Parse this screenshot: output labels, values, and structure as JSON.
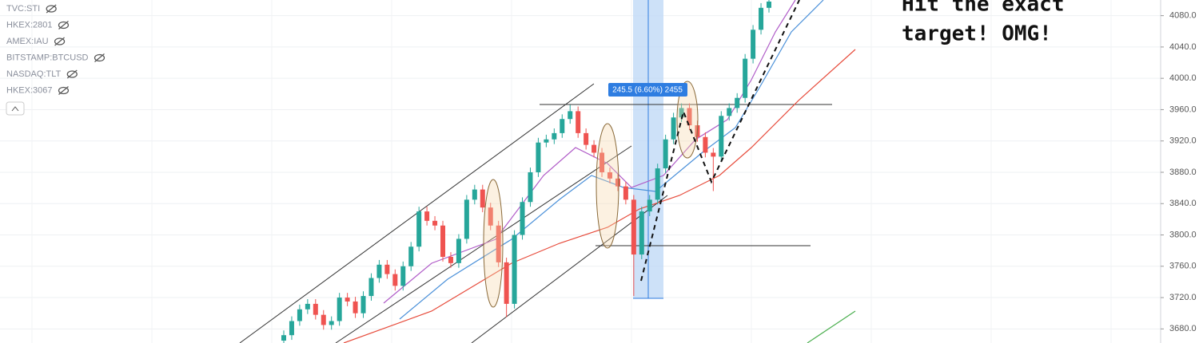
{
  "symbols": [
    "TVC:STI",
    "HKEX:2801",
    "AMEX:IAU",
    "BITSTAMP:BTCUSD",
    "NASDAQ:TLT",
    "HKEX:3067"
  ],
  "chart_data": {
    "type": "candlestick",
    "open": [
      3665,
      3672,
      3690,
      3705,
      3712,
      3698,
      3685,
      3690,
      3720,
      3715,
      3700,
      3722,
      3745,
      3762,
      3750,
      3735,
      3760,
      3785,
      3830,
      3818,
      3812,
      3772,
      3764,
      3795,
      3845,
      3858,
      3835,
      3812,
      3765,
      3712,
      3800,
      3842,
      3880,
      3918,
      3922,
      3930,
      3948,
      3958,
      3930,
      3915,
      3905,
      3880,
      3872,
      3862,
      3845,
      3775,
      3830,
      3845,
      3885,
      3922,
      3950,
      3962,
      3940,
      3925,
      3905,
      3900,
      3952,
      3962,
      3975,
      4025,
      4062,
      4090
    ],
    "high": [
      3678,
      3696,
      3711,
      3718,
      3718,
      3704,
      3696,
      3726,
      3726,
      3721,
      3728,
      3751,
      3768,
      3768,
      3756,
      3766,
      3791,
      3836,
      3836,
      3824,
      3818,
      3778,
      3801,
      3851,
      3864,
      3864,
      3841,
      3818,
      3771,
      3806,
      3848,
      3886,
      3924,
      3928,
      3936,
      3954,
      3966,
      3964,
      3936,
      3921,
      3911,
      3886,
      3878,
      3868,
      3851,
      3836,
      3851,
      3891,
      3928,
      3956,
      3968,
      3968,
      3946,
      3931,
      3911,
      3958,
      3968,
      3981,
      4031,
      4068,
      4096,
      4104
    ],
    "low": [
      3659,
      3666,
      3684,
      3699,
      3692,
      3679,
      3679,
      3684,
      3709,
      3694,
      3694,
      3716,
      3739,
      3744,
      3729,
      3729,
      3754,
      3779,
      3812,
      3806,
      3766,
      3758,
      3758,
      3789,
      3839,
      3829,
      3806,
      3759,
      3695,
      3706,
      3794,
      3836,
      3874,
      3912,
      3916,
      3924,
      3942,
      3924,
      3909,
      3899,
      3874,
      3866,
      3856,
      3839,
      3722,
      3769,
      3824,
      3839,
      3879,
      3916,
      3944,
      3934,
      3919,
      3899,
      3856,
      3894,
      3946,
      3956,
      3969,
      4019,
      4056,
      4084
    ],
    "close": [
      3672,
      3690,
      3705,
      3712,
      3698,
      3685,
      3690,
      3720,
      3715,
      3700,
      3722,
      3745,
      3762,
      3750,
      3735,
      3760,
      3785,
      3830,
      3818,
      3812,
      3772,
      3764,
      3795,
      3845,
      3858,
      3835,
      3812,
      3765,
      3712,
      3800,
      3842,
      3880,
      3918,
      3922,
      3930,
      3948,
      3958,
      3930,
      3915,
      3905,
      3880,
      3872,
      3862,
      3845,
      3775,
      3830,
      3845,
      3885,
      3922,
      3950,
      3962,
      3940,
      3925,
      3905,
      3900,
      3952,
      3962,
      3975,
      4025,
      4062,
      4090,
      4098
    ],
    "up_color": "#26a69a",
    "down_color": "#ef5350",
    "ylim": [
      3662,
      4100
    ],
    "yticks": [
      {
        "value": 3680,
        "label": "3680.0"
      },
      {
        "value": 3720,
        "label": "3720.0"
      },
      {
        "value": 3760,
        "label": "3760.0"
      },
      {
        "value": 3800,
        "label": "3800.0"
      },
      {
        "value": 3840,
        "label": "3840.0"
      },
      {
        "value": 3880,
        "label": "3880.0"
      },
      {
        "value": 3920,
        "label": "3920.0"
      },
      {
        "value": 3960,
        "label": "3960.0"
      },
      {
        "value": 4000,
        "label": "4000.0"
      },
      {
        "value": 4040,
        "label": "4040.0"
      },
      {
        "value": 4080,
        "label": "4080.0"
      }
    ],
    "grid": true,
    "measure_label": "245.5 (6.60%) 2455",
    "annotation": [
      "Hit the exact",
      "target! OMG!"
    ]
  }
}
